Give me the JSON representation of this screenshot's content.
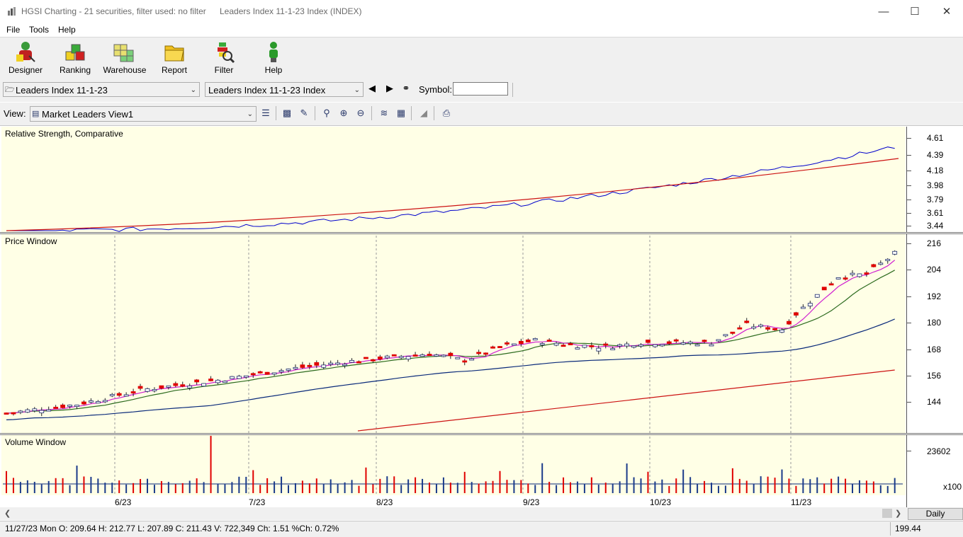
{
  "window": {
    "title": "HGSI Charting - 21 securities, filter used: no filter",
    "document_title": "Leaders Index 11-1-23 Index (INDEX)"
  },
  "menu": [
    "File",
    "Tools",
    "Help"
  ],
  "toolbar": [
    {
      "label": "Designer",
      "icon": "designer-icon"
    },
    {
      "label": "Ranking",
      "icon": "ranking-icon"
    },
    {
      "label": "Warehouse",
      "icon": "warehouse-icon"
    },
    {
      "label": "Report",
      "icon": "report-folder-icon"
    },
    {
      "label": "Filter",
      "icon": "filter-icon"
    },
    {
      "label": "Help",
      "icon": "help-person-icon"
    }
  ],
  "list_combo": "Leaders Index 11-1-23",
  "security_combo": "Leaders Index 11-1-23 Index",
  "symbol_label": "Symbol:",
  "symbol_value": "",
  "view_label": "View:",
  "view_combo": "Market Leaders View1",
  "panels": {
    "rs_title": "Relative Strength, Comparative",
    "price_title": "Price Window",
    "volume_title": "Volume Window"
  },
  "rs_axis": [
    "4.61",
    "4.39",
    "4.18",
    "3.98",
    "3.79",
    "3.61",
    "3.44"
  ],
  "price_axis": [
    "216",
    "204",
    "192",
    "180",
    "168",
    "156",
    "144"
  ],
  "volume_axis": [
    "23602"
  ],
  "volume_unit": "x100",
  "date_labels": [
    "6/23",
    "7/23",
    "8/23",
    "9/23",
    "10/23",
    "11/23"
  ],
  "period_button": "Daily",
  "status_text": "11/27/23 Mon O: 209.64 H: 212.77 L: 207.89 C: 211.43 V: 722,349 Ch: 1.51 %Ch: 0.72%",
  "status_value": "199.44",
  "colors": {
    "panel_bg": "#ffffe6",
    "up_candle": "#ffffff",
    "down_candle": "#e00000",
    "rs_line": "#0000cc",
    "ma_red": "#cc1111",
    "ma_blue": "#0a2a7a",
    "ma_green": "#2d6b1f",
    "ma_magenta": "#d020d0"
  }
}
